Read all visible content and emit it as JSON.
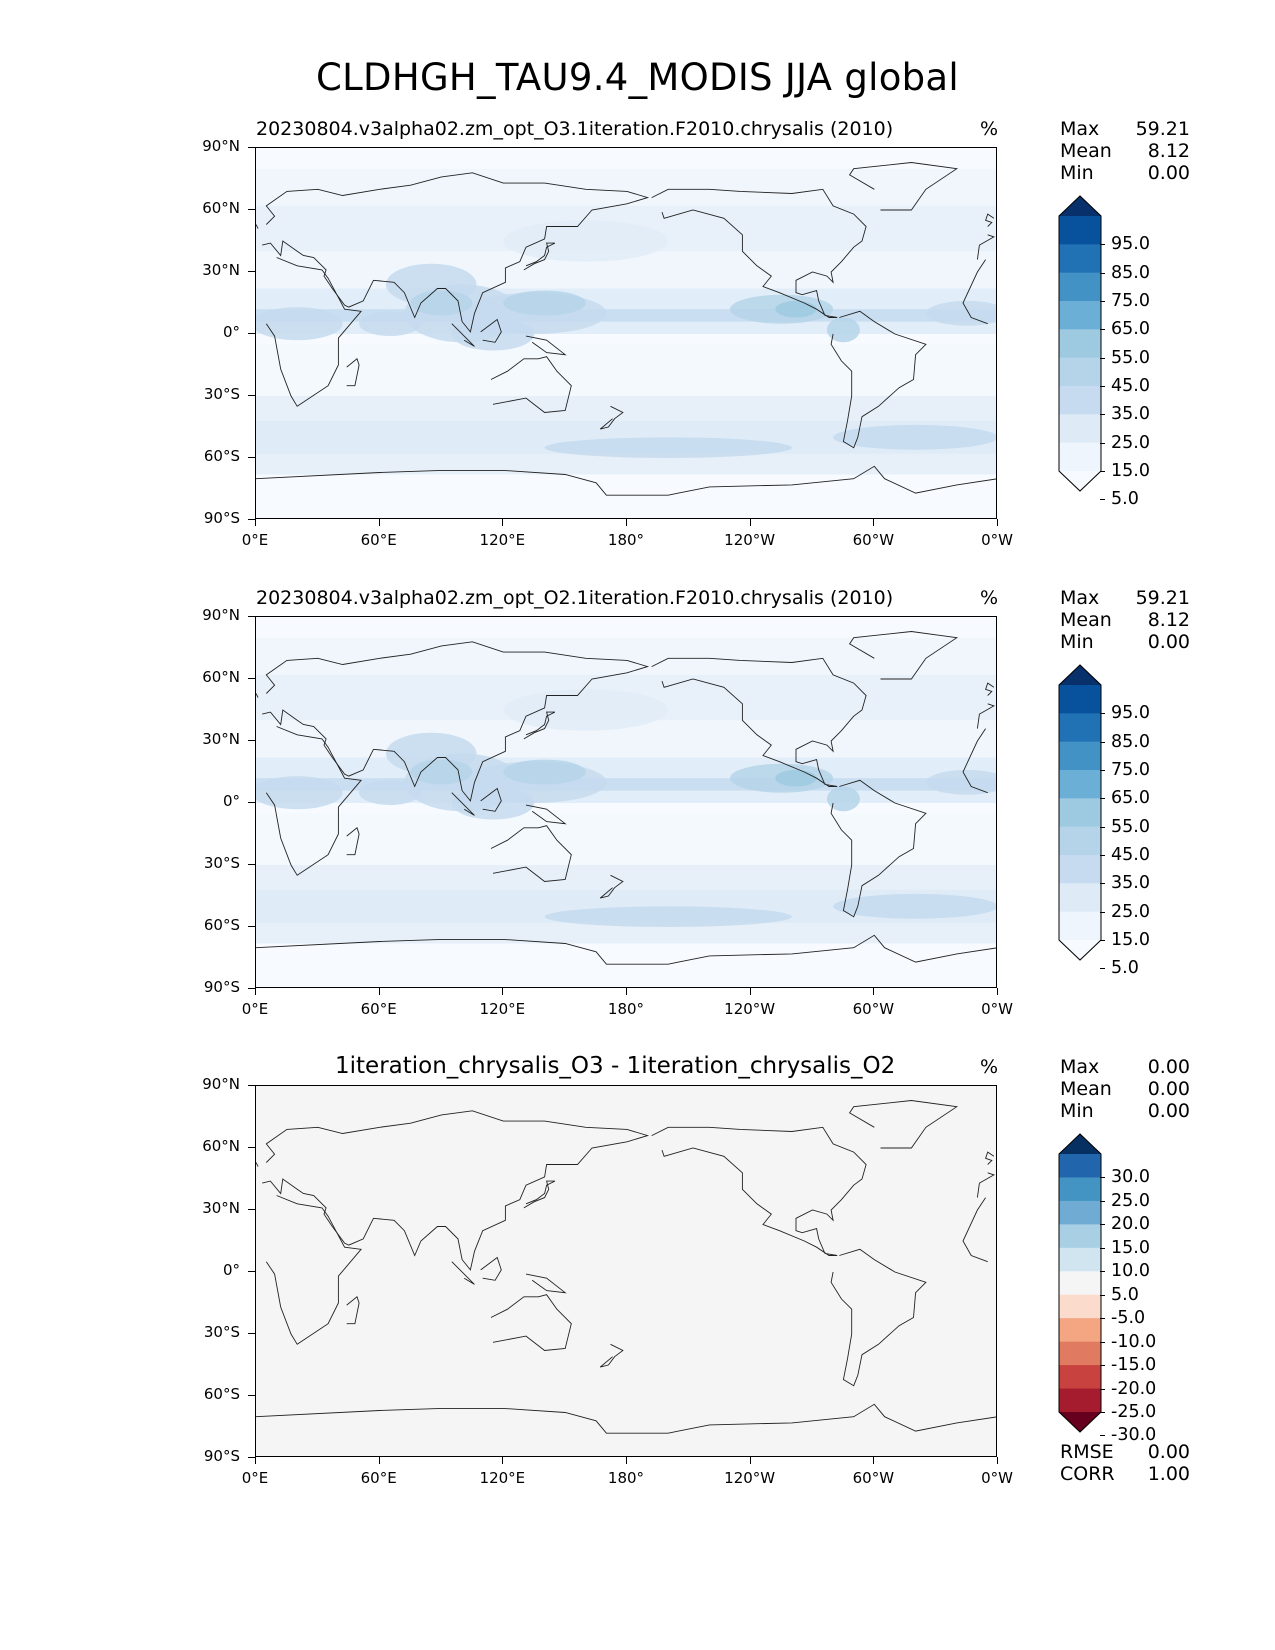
{
  "figure": {
    "title": "CLDHGH_TAU9.4_MODIS JJA global"
  },
  "axes": {
    "lat_labels": [
      "90°N",
      "60°N",
      "30°N",
      "0°",
      "30°S",
      "60°S",
      "90°S"
    ],
    "lon_labels": [
      "0°E",
      "60°E",
      "120°E",
      "180°",
      "120°W",
      "60°W",
      "0°W"
    ],
    "lon_range": [
      0,
      360
    ],
    "lat_range": [
      -90,
      90
    ]
  },
  "panels": [
    {
      "title": "20230804.v3alpha02.zm_opt_O3.1iteration.F2010.chrysalis (2010)",
      "units": "%",
      "stats": {
        "max_label": "Max",
        "max": "59.21",
        "mean_label": "Mean",
        "mean": "8.12",
        "min_label": "Min",
        "min": "0.00"
      },
      "colorbar": {
        "levels": [
          "95.0",
          "85.0",
          "75.0",
          "65.0",
          "55.0",
          "45.0",
          "35.0",
          "25.0",
          "15.0",
          "5.0"
        ],
        "colors": [
          "#08306b",
          "#08519c",
          "#2171b5",
          "#4292c6",
          "#6baed6",
          "#9ecae1",
          "#b5d4e9",
          "#c6dbef",
          "#deebf7",
          "#eef5fc",
          "#f7fbff"
        ]
      },
      "field": "model"
    },
    {
      "title": "20230804.v3alpha02.zm_opt_O2.1iteration.F2010.chrysalis (2010)",
      "units": "%",
      "stats": {
        "max_label": "Max",
        "max": "59.21",
        "mean_label": "Mean",
        "mean": "8.12",
        "min_label": "Min",
        "min": "0.00"
      },
      "colorbar": {
        "levels": [
          "95.0",
          "85.0",
          "75.0",
          "65.0",
          "55.0",
          "45.0",
          "35.0",
          "25.0",
          "15.0",
          "5.0"
        ],
        "colors": [
          "#08306b",
          "#08519c",
          "#2171b5",
          "#4292c6",
          "#6baed6",
          "#9ecae1",
          "#b5d4e9",
          "#c6dbef",
          "#deebf7",
          "#eef5fc",
          "#f7fbff"
        ]
      },
      "field": "model"
    },
    {
      "title": "1iteration_chrysalis_O3 - 1iteration_chrysalis_O2",
      "units": "%",
      "stats": {
        "max_label": "Max",
        "max": "0.00",
        "mean_label": "Mean",
        "mean": "0.00",
        "min_label": "Min",
        "min": "0.00"
      },
      "colorbar": {
        "levels": [
          "30.0",
          "25.0",
          "20.0",
          "15.0",
          "10.0",
          "5.0",
          "-5.0",
          "-10.0",
          "-15.0",
          "-20.0",
          "-25.0",
          "-30.0"
        ],
        "colors": [
          "#053061",
          "#2166ac",
          "#4393c3",
          "#6fabd2",
          "#a9cfe5",
          "#d1e5f0",
          "#f5f5f5",
          "#fbdccc",
          "#f4a582",
          "#e07b62",
          "#c8423f",
          "#a51c2e",
          "#67001f"
        ]
      },
      "field": "diff",
      "extra_stats": {
        "rmse_label": "RMSE",
        "rmse": "0.00",
        "corr_label": "CORR",
        "corr": "1.00"
      }
    }
  ]
}
